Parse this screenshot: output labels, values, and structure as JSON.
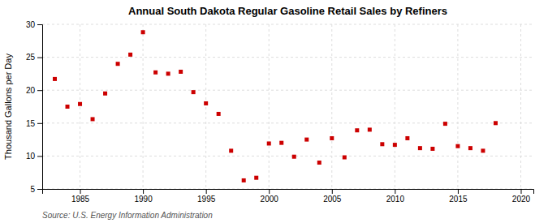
{
  "chart_data": {
    "type": "scatter",
    "title": "Annual South Dakota Regular Gasoline Retail Sales by Refiners",
    "ylabel": "Thousand Gallons per Day",
    "annotation": "Source: U.S. Energy Information Administration",
    "x": [
      1983,
      1984,
      1985,
      1986,
      1987,
      1988,
      1989,
      1990,
      1991,
      1992,
      1993,
      1994,
      1995,
      1996,
      1997,
      1998,
      1999,
      2000,
      2001,
      2002,
      2003,
      2004,
      2005,
      2006,
      2007,
      2008,
      2009,
      2010,
      2011,
      2012,
      2013,
      2014,
      2015,
      2016,
      2017,
      2018
    ],
    "values": [
      21.7,
      17.5,
      17.9,
      15.6,
      19.5,
      24.0,
      25.4,
      28.8,
      22.7,
      22.5,
      22.8,
      19.7,
      18.0,
      16.4,
      10.8,
      6.3,
      6.7,
      11.9,
      12.0,
      9.9,
      12.5,
      9.0,
      12.7,
      9.8,
      13.9,
      14.0,
      11.8,
      11.7,
      12.7,
      11.2,
      11.1,
      14.9,
      11.5,
      11.2,
      10.8,
      15.0
    ],
    "color": "#cc0000",
    "marker": "square",
    "xlim": [
      1982,
      2021
    ],
    "ylim": [
      5,
      30
    ],
    "xticks": [
      1985,
      1990,
      1995,
      2000,
      2005,
      2010,
      2015,
      2020
    ],
    "yticks": [
      5,
      10,
      15,
      20,
      25,
      30
    ],
    "grid": true
  }
}
